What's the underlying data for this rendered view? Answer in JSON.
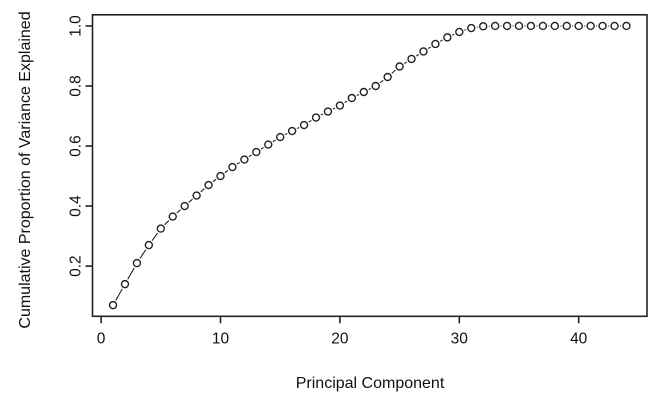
{
  "chart_data": {
    "type": "line",
    "title": "",
    "xlabel": "Principal Component",
    "ylabel": "Cumulative Proportion of Variance Explained",
    "marker": "open-circle",
    "grid": false,
    "legend": null,
    "x_tick_labels": [
      "0",
      "10",
      "20",
      "30",
      "40"
    ],
    "x_tick_values": [
      0,
      10,
      20,
      30,
      40
    ],
    "y_tick_labels": [
      "0.2",
      "0.4",
      "0.6",
      "0.8",
      "1.0"
    ],
    "y_tick_values": [
      0.2,
      0.4,
      0.6,
      0.8,
      1.0
    ],
    "xlim": [
      -0.72,
      45.72
    ],
    "ylim": [
      0.0328,
      1.0372
    ],
    "x": [
      1,
      2,
      3,
      4,
      5,
      6,
      7,
      8,
      9,
      10,
      11,
      12,
      13,
      14,
      15,
      16,
      17,
      18,
      19,
      20,
      21,
      22,
      23,
      24,
      25,
      26,
      27,
      28,
      29,
      30,
      31,
      32,
      33,
      34,
      35,
      36,
      37,
      38,
      39,
      40,
      41,
      42,
      43,
      44
    ],
    "y": [
      0.07,
      0.14,
      0.21,
      0.27,
      0.325,
      0.365,
      0.4,
      0.435,
      0.47,
      0.5,
      0.53,
      0.555,
      0.58,
      0.605,
      0.63,
      0.65,
      0.67,
      0.695,
      0.715,
      0.735,
      0.76,
      0.78,
      0.8,
      0.83,
      0.865,
      0.89,
      0.915,
      0.94,
      0.962,
      0.98,
      0.993,
      0.999,
      1.0,
      1.0,
      1.0,
      1.0,
      1.0,
      1.0,
      1.0,
      1.0,
      1.0,
      1.0,
      1.0,
      1.0
    ],
    "colors": {
      "foreground": "#222222",
      "text": "#111111",
      "background": "#ffffff"
    }
  }
}
